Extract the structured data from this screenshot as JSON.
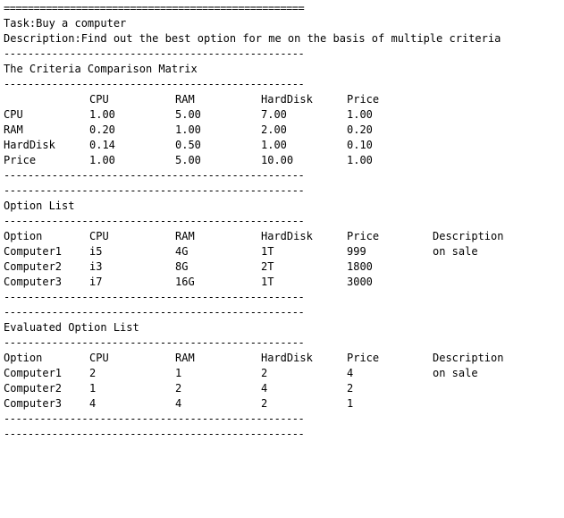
{
  "separators": {
    "double": "==================================================",
    "single": "--------------------------------------------------"
  },
  "task": {
    "label": "Task:",
    "value": "Buy a computer"
  },
  "description": {
    "label": "Description:",
    "value": "Find out the best option for me on the basis of multiple criteria"
  },
  "criteria_matrix": {
    "title": "The Criteria Comparison Matrix",
    "headers": [
      "",
      "CPU",
      "RAM",
      "HardDisk",
      "Price"
    ],
    "rows": [
      [
        "CPU",
        "1.00",
        "5.00",
        "7.00",
        "1.00"
      ],
      [
        "RAM",
        "0.20",
        "1.00",
        "2.00",
        "0.20"
      ],
      [
        "HardDisk",
        "0.14",
        "0.50",
        "1.00",
        "0.10"
      ],
      [
        "Price",
        "1.00",
        "5.00",
        "10.00",
        "1.00"
      ]
    ]
  },
  "option_list": {
    "title": "Option List",
    "headers": [
      "Option",
      "CPU",
      "RAM",
      "HardDisk",
      "Price",
      "Description"
    ],
    "rows": [
      [
        "Computer1",
        "i5",
        "4G",
        "1T",
        "999",
        "on sale"
      ],
      [
        "Computer2",
        "i3",
        "8G",
        "2T",
        "1800",
        ""
      ],
      [
        "Computer3",
        "i7",
        "16G",
        "1T",
        "3000",
        ""
      ]
    ]
  },
  "evaluated_option_list": {
    "title": "Evaluated Option List",
    "headers": [
      "Option",
      "CPU",
      "RAM",
      "HardDisk",
      "Price",
      "Description"
    ],
    "rows": [
      [
        "Computer1",
        "2",
        "1",
        "2",
        "4",
        "on sale"
      ],
      [
        "Computer2",
        "1",
        "2",
        "4",
        "2",
        ""
      ],
      [
        "Computer3",
        "4",
        "4",
        "2",
        "1",
        ""
      ]
    ]
  }
}
